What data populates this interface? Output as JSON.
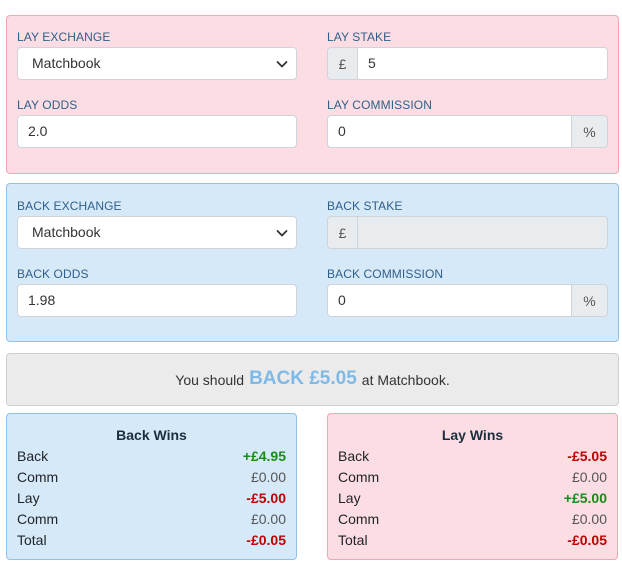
{
  "lay": {
    "exchange_label": "LAY EXCHANGE",
    "exchange_value": "Matchbook",
    "stake_label": "LAY STAKE",
    "stake_currency": "£",
    "stake_value": "5",
    "odds_label": "LAY ODDS",
    "odds_value": "2.0",
    "commission_label": "LAY COMMISSION",
    "commission_value": "0",
    "commission_unit": "%"
  },
  "back": {
    "exchange_label": "BACK EXCHANGE",
    "exchange_value": "Matchbook",
    "stake_label": "BACK STAKE",
    "stake_currency": "£",
    "stake_value": "",
    "odds_label": "BACK ODDS",
    "odds_value": "1.98",
    "commission_label": "BACK COMMISSION",
    "commission_value": "0",
    "commission_unit": "%"
  },
  "advice": {
    "prefix": "You should",
    "action": "BACK £5.05",
    "suffix": "at Matchbook."
  },
  "back_wins": {
    "title": "Back Wins",
    "rows": [
      {
        "label": "Back",
        "value": "+£4.95",
        "tone": "pos"
      },
      {
        "label": "Comm",
        "value": "£0.00",
        "tone": "neutral"
      },
      {
        "label": "Lay",
        "value": "-£5.00",
        "tone": "neg"
      },
      {
        "label": "Comm",
        "value": "£0.00",
        "tone": "neutral"
      },
      {
        "label": "Total",
        "value": "-£0.05",
        "tone": "neg"
      }
    ]
  },
  "lay_wins": {
    "title": "Lay Wins",
    "rows": [
      {
        "label": "Back",
        "value": "-£5.05",
        "tone": "neg"
      },
      {
        "label": "Comm",
        "value": "£0.00",
        "tone": "neutral"
      },
      {
        "label": "Lay",
        "value": "+£5.00",
        "tone": "pos"
      },
      {
        "label": "Comm",
        "value": "£0.00",
        "tone": "neutral"
      },
      {
        "label": "Total",
        "value": "-£0.05",
        "tone": "neg"
      }
    ]
  },
  "icons": {
    "select_arrow": "chevron-down-icon"
  },
  "colors": {
    "lay_bg": "#fcdde3",
    "back_bg": "#d6e9f9",
    "positive": "#1a8a1a",
    "negative": "#c00000",
    "advice_highlight": "#7fb9e6"
  }
}
